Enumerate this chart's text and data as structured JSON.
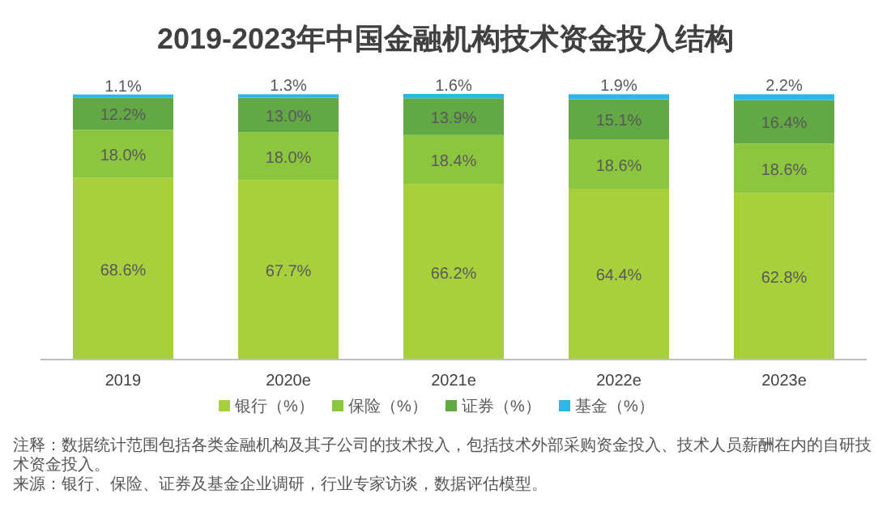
{
  "chart_data": {
    "type": "bar",
    "stacked": true,
    "title": "2019-2023年中国金融机构技术资金投入结构",
    "categories": [
      "2019",
      "2020e",
      "2021e",
      "2022e",
      "2023e"
    ],
    "series": [
      {
        "name": "银行（%）",
        "color": "#a7d03c",
        "values": [
          68.6,
          67.7,
          66.2,
          64.4,
          62.8
        ],
        "value_labels": [
          "68.6%",
          "67.7%",
          "66.2%",
          "64.4%",
          "62.8%"
        ]
      },
      {
        "name": "保险（%）",
        "color": "#8cc63f",
        "values": [
          18.0,
          18.0,
          18.4,
          18.6,
          18.6
        ],
        "value_labels": [
          "18.0%",
          "18.0%",
          "18.4%",
          "18.6%",
          "18.6%"
        ]
      },
      {
        "name": "证券（%）",
        "color": "#62a844",
        "values": [
          12.2,
          13.0,
          13.9,
          15.1,
          16.4
        ],
        "value_labels": [
          "12.2%",
          "13.0%",
          "13.9%",
          "15.1%",
          "16.4%"
        ]
      },
      {
        "name": "基金（%）",
        "color": "#2bb8e8",
        "values": [
          1.1,
          1.3,
          1.6,
          1.9,
          2.2
        ],
        "value_labels": [
          "1.1%",
          "1.3%",
          "1.6%",
          "1.9%",
          "2.2%"
        ]
      }
    ],
    "legend": "bottom",
    "annotations": [
      "注释：数据统计范围包括各类金融机构及其子公司的技术投入，包括技术外部采购资金投入、技术人员薪酬在内的自研技术资金投入。",
      "来源：银行、保险、证券及基金企业调研，行业专家访谈，数据评估模型。"
    ]
  }
}
